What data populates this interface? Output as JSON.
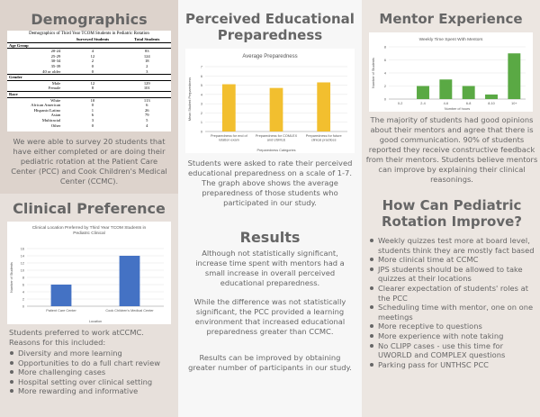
{
  "left": {
    "demographics_title": "Demographics",
    "table": {
      "caption": "Demographics of Third Year TCOM Students in Pediatric Rotation",
      "col_headers": [
        "",
        "Surveyed Students",
        "Total Students"
      ],
      "groups": [
        {
          "name": "Age Group",
          "rows": [
            [
              "20-24",
              "4",
              "83"
            ],
            [
              "25-29",
              "12",
              "124"
            ],
            [
              "30-34",
              "2",
              "18"
            ],
            [
              "35-39",
              "0",
              "2"
            ],
            [
              "40 or older",
              "0",
              "3"
            ]
          ]
        },
        {
          "name": "Gender",
          "rows": [
            [
              "Male",
              "12",
              "129"
            ],
            [
              "Female",
              "8",
              "101"
            ]
          ]
        },
        {
          "name": "Race",
          "rows": [
            [
              "White",
              "10",
              "113"
            ],
            [
              "African American",
              "0",
              "6"
            ],
            [
              "Hispanic/Latino",
              "1",
              "26"
            ],
            [
              "Asian",
              "6",
              "79"
            ],
            [
              "Multiracial",
              "3",
              "5"
            ],
            [
              "Other",
              "0",
              "4"
            ]
          ]
        }
      ]
    },
    "demographics_text": "We were able to survey 20 students that have either completed or are doing their pediatric rotation at the Patient Care Center (PCC) and Cook Children's Medical Center (CCMC).",
    "clinical_title": "Clinical Preference",
    "clinical_text": "Students preferred to work atCCMC. Reasons for this included:",
    "clinical_bullets": [
      "Diversity and more learning",
      "Opportunities to do a full chart review",
      "More challenging cases",
      "Hospital setting over clinical setting",
      "More rewarding and informative"
    ]
  },
  "middle": {
    "title": "Perceived Educational Preparedness",
    "paragraph1": "Students were asked to rate their perceived educational preparedness on a scale of 1-7. The graph above shows the average preparedness of those students who participated in our study.",
    "results_title": "Results",
    "results_p1": "Although not statistically significant, increase time spent with mentors had a small increase in overall perceived educational preparedness.",
    "results_p2": "While the difference was not statistically significant, the PCC provided a learning environment that increased educational preparedness greater than CCMC.",
    "results_p3": "Results can be improved by obtaining greater number of participants in our study."
  },
  "right": {
    "mentor_title": "Mentor Experience",
    "mentor_text": "The majority of students had good opinions about their mentors and agree that there is good communication. 90% of students reported they receive constructive feedback from their mentors. Students believe mentors can improve by explaining their clinical reasonings.",
    "improve_title": "How Can Pediatric Rotation Improve?",
    "improve_bullets": [
      "Weekly quizzes test more at board level, students think they are mostly fact based",
      "More clinical time at CCMC",
      "JPS students should be allowed to take quizzes at their locations",
      "Clearer expectation of students' roles at the PCC",
      "Scheduling time with mentor, one on one meetings",
      "More receptive to questions",
      "More experience with note taking",
      "No CLIPP cases - use this time for UWORLD and COMPLEX questions",
      "Parking pass for UNTHSC PCC"
    ]
  },
  "chart_data": [
    {
      "type": "bar",
      "title": "Clinical Location Preferred by Third Year TCOM Students in Pediatric Clinical",
      "categories": [
        "Patient Care Center",
        "Cook Children's Medical Center"
      ],
      "values": [
        6,
        14
      ],
      "xlabel": "Location",
      "ylabel": "Number of Students",
      "ylim": [
        0,
        16
      ],
      "yticks": [
        "0",
        "2",
        "4",
        "6",
        "8",
        "10",
        "12",
        "14",
        "16"
      ],
      "color": "#4472c4"
    },
    {
      "type": "bar",
      "title": "Average Preparedness",
      "categories": [
        "Preparedness for end of rotation exam",
        "Preparedness for COMLEX and USMLE",
        "Preparedness for future clinical practices"
      ],
      "values": [
        5.1,
        4.7,
        5.3
      ],
      "xlabel": "Preparedness Categories",
      "ylabel": "Mean Student Preparedness",
      "ylim": [
        0,
        7
      ],
      "yticks": [
        "0",
        "1",
        "2",
        "3",
        "4",
        "5",
        "6",
        "7"
      ],
      "color": "#f2bf2f"
    },
    {
      "type": "bar",
      "title": "Weekly Time Spent With Mentors",
      "categories": [
        "0-2",
        "2-4",
        "4-6",
        "6-8",
        "8-10",
        "10+"
      ],
      "values": [
        0,
        2,
        3,
        2,
        0.7,
        7
      ],
      "xlabel": "Number of hours",
      "ylabel": "Number of Students",
      "ylim": [
        0,
        8
      ],
      "yticks": [
        "0",
        "2",
        "4",
        "6",
        "8"
      ],
      "color": "#5aa944"
    }
  ]
}
